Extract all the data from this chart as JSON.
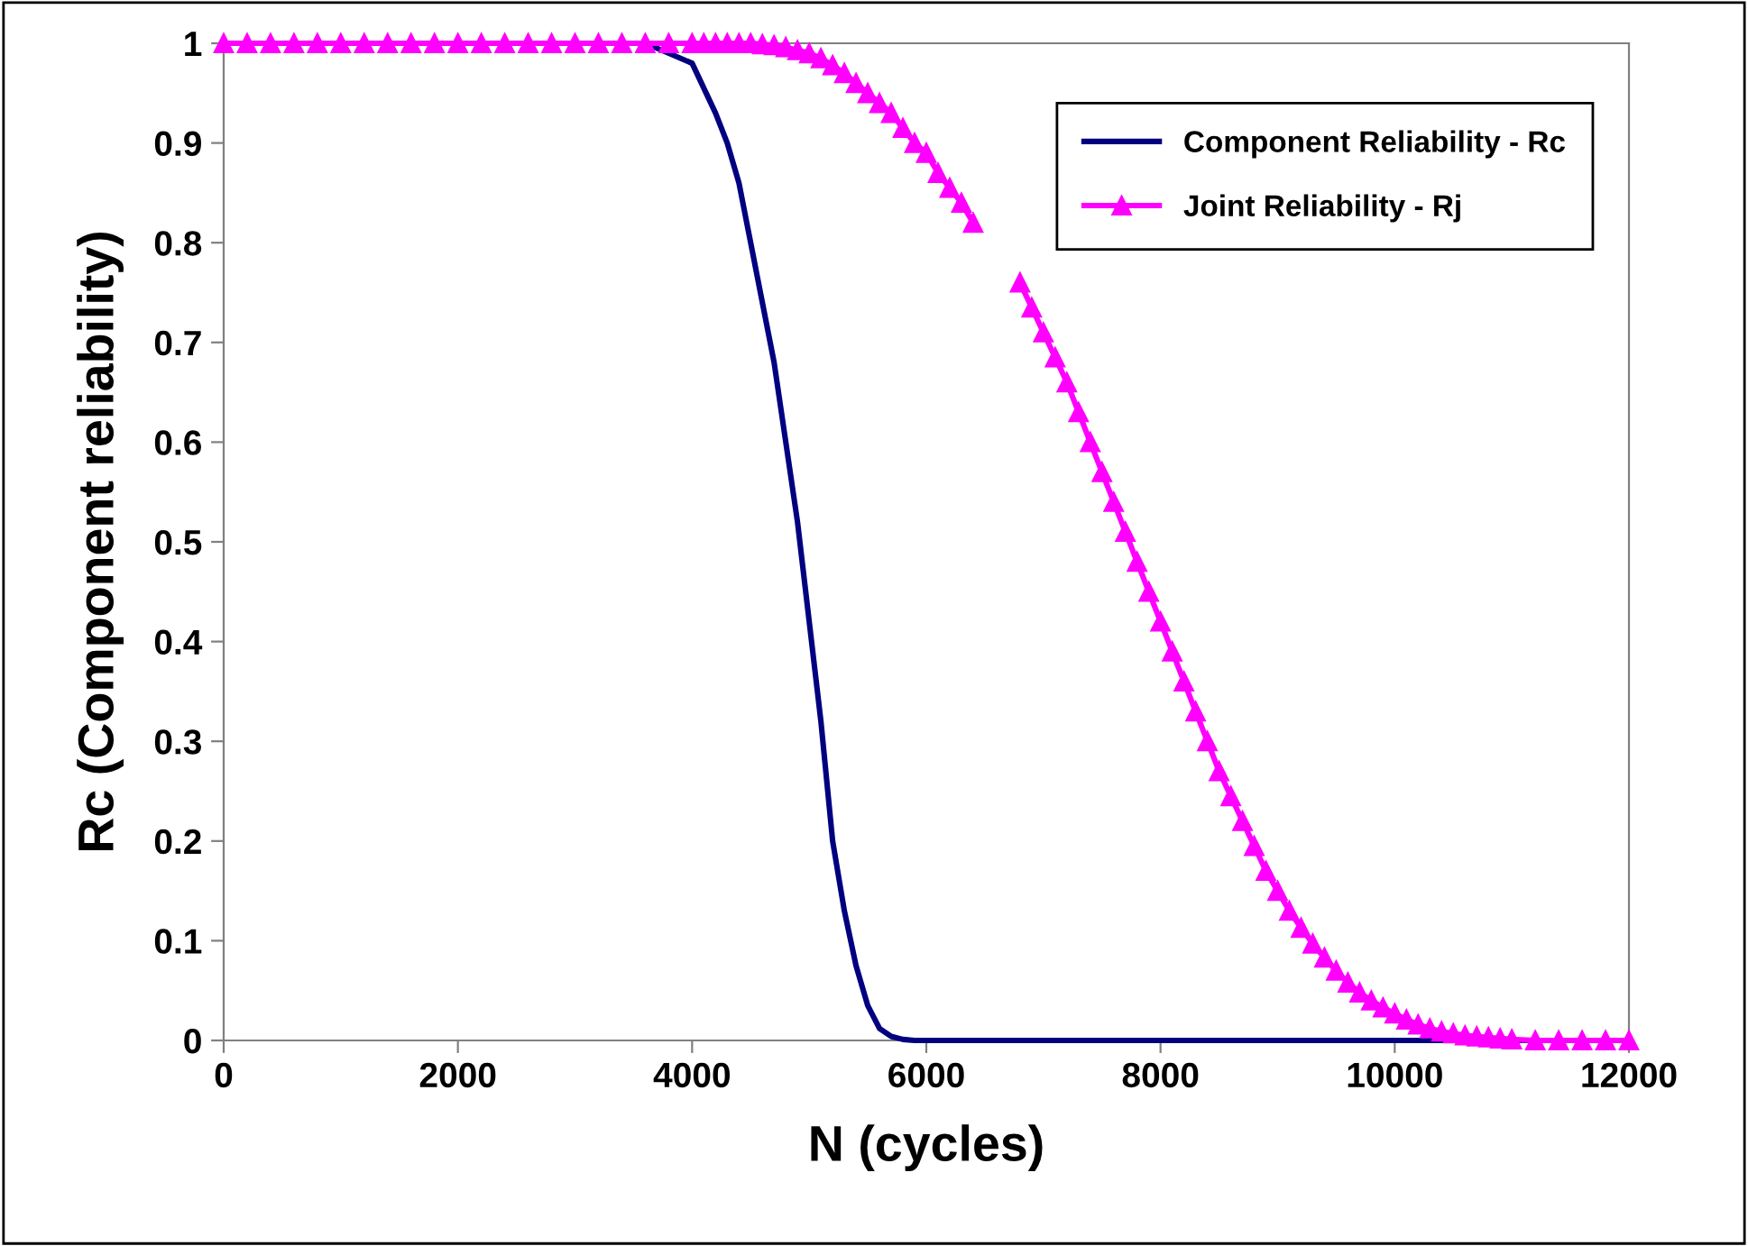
{
  "chart_data": {
    "type": "line",
    "xlabel": "N (cycles)",
    "ylabel": "Rc (Component reliability)",
    "xlim": [
      0,
      12000
    ],
    "xticks": [
      0,
      2000,
      4000,
      6000,
      8000,
      10000,
      12000
    ],
    "ylim": [
      0,
      1
    ],
    "yticks": [
      0,
      0.1,
      0.2,
      0.3,
      0.4,
      0.5,
      0.6,
      0.7,
      0.8,
      0.9,
      1
    ],
    "grid": false,
    "legend": "top right",
    "series": [
      {
        "name": "Component Reliability - Rc",
        "color": "#000080",
        "marker": "none",
        "x": [
          3600,
          3800,
          4000,
          4200,
          4300,
          4400,
          4500,
          4600,
          4700,
          4800,
          4900,
          5000,
          5100,
          5200,
          5300,
          5400,
          5500,
          5600,
          5700,
          5800,
          5900,
          12000
        ],
        "values": [
          1,
          0.99,
          0.98,
          0.93,
          0.9,
          0.86,
          0.8,
          0.74,
          0.68,
          0.6,
          0.52,
          0.42,
          0.32,
          0.2,
          0.13,
          0.075,
          0.035,
          0.012,
          0.004,
          0.001,
          0,
          0
        ]
      },
      {
        "name": "Joint Reliability - Rj",
        "color": "#ff00ff",
        "marker": "triangle",
        "x": [
          0,
          200,
          400,
          600,
          800,
          1000,
          1200,
          1400,
          1600,
          1800,
          2000,
          2200,
          2400,
          2600,
          2800,
          3000,
          3200,
          3400,
          3600,
          3800,
          4000,
          4100,
          4200,
          4300,
          4400,
          4500,
          4600,
          4700,
          4800,
          4900,
          5000,
          5100,
          5200,
          5300,
          5400,
          5500,
          5600,
          5700,
          5800,
          5900,
          6000,
          6100,
          6200,
          6300,
          6400,
          6500,
          6600,
          6700,
          6800,
          6900,
          7000,
          7100,
          7200,
          7300,
          7400,
          7500,
          7600,
          7700,
          7800,
          7900,
          8000,
          8100,
          8200,
          8300,
          8400,
          8500,
          8600,
          8700,
          8800,
          8900,
          9000,
          9100,
          9200,
          9300,
          9400,
          9500,
          9600,
          9700,
          9800,
          9900,
          10000,
          10100,
          10200,
          10300,
          10400,
          10500,
          10600,
          10700,
          10800,
          10900,
          11000,
          11200,
          11400,
          11600,
          11800,
          12000
        ],
        "values": [
          1,
          1,
          1,
          1,
          1,
          1,
          1,
          1,
          1,
          1,
          1,
          1,
          1,
          1,
          1,
          1,
          1,
          1,
          1,
          1,
          1,
          1,
          1,
          1,
          1,
          1,
          0.999,
          0.998,
          0.996,
          0.993,
          0.99,
          0.985,
          0.978,
          0.97,
          0.96,
          0.95,
          0.94,
          0.93,
          0.915,
          0.9,
          0.89,
          0.87,
          0.855,
          0.84,
          0.82,
          null,
          null,
          null,
          0.76,
          0.735,
          0.71,
          0.685,
          0.66,
          0.63,
          0.6,
          0.57,
          0.54,
          0.51,
          0.48,
          0.45,
          0.42,
          0.39,
          0.36,
          0.33,
          0.3,
          0.27,
          0.245,
          0.22,
          0.195,
          0.17,
          0.15,
          0.13,
          0.113,
          0.097,
          0.083,
          0.07,
          0.058,
          0.048,
          0.04,
          0.033,
          0.027,
          0.021,
          0.016,
          0.012,
          0.009,
          0.007,
          0.005,
          0.004,
          0.003,
          0.002,
          0.001,
          0,
          0,
          0,
          0,
          0
        ]
      }
    ]
  }
}
